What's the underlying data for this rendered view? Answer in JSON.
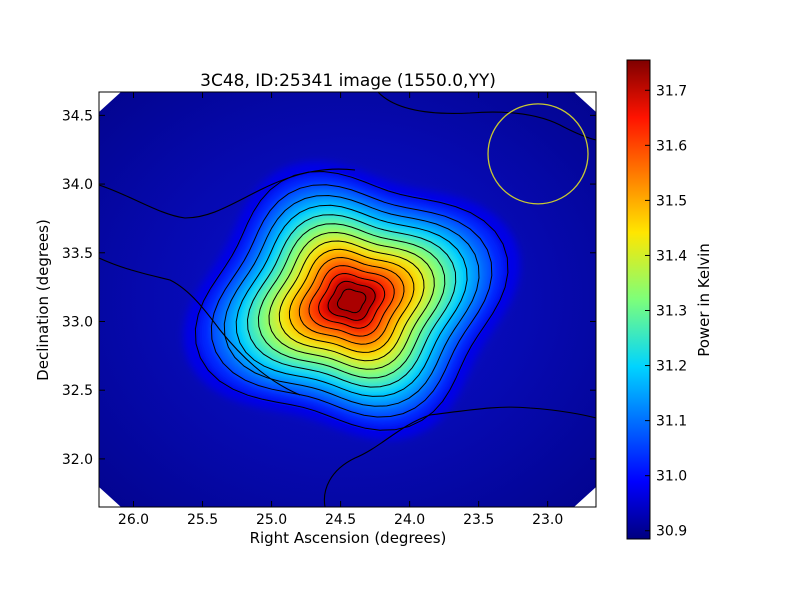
{
  "chart_data": {
    "type": "heatmap",
    "title": "3C48, ID:25341 image (1550.0,YY)",
    "xlabel": "Right Ascension (degrees)",
    "ylabel": "Declination (degrees)",
    "xlim": [
      26.25,
      22.65
    ],
    "ylim": [
      31.65,
      34.67
    ],
    "x_ticks": [
      "26.0",
      "25.5",
      "25.0",
      "24.5",
      "24.0",
      "23.5",
      "23.0"
    ],
    "x_tick_values": [
      26.0,
      25.5,
      25.0,
      24.5,
      24.0,
      23.5,
      23.0
    ],
    "y_ticks": [
      "32.0",
      "32.5",
      "33.0",
      "33.5",
      "34.0",
      "34.5"
    ],
    "y_tick_values": [
      32.0,
      32.5,
      33.0,
      33.5,
      34.0,
      34.5
    ],
    "colormap": "jet",
    "grid": false,
    "peak": {
      "ra": 24.42,
      "dec": 33.15,
      "value": 31.72
    },
    "background_value": 30.97,
    "min_value": 30.885,
    "contours": {
      "levels": 14,
      "color": "#000000"
    },
    "beam": {
      "ra": 23.07,
      "dec": 34.22,
      "color": "#c8c832"
    },
    "colorbar": {
      "label": "Power in Kelvin",
      "range": [
        30.885,
        31.755
      ],
      "ticks": [
        "30.9",
        "31.0",
        "31.1",
        "31.2",
        "31.3",
        "31.4",
        "31.5",
        "31.6",
        "31.7"
      ],
      "tick_values": [
        30.9,
        31.0,
        31.1,
        31.2,
        31.3,
        31.4,
        31.5,
        31.6,
        31.7
      ]
    }
  }
}
